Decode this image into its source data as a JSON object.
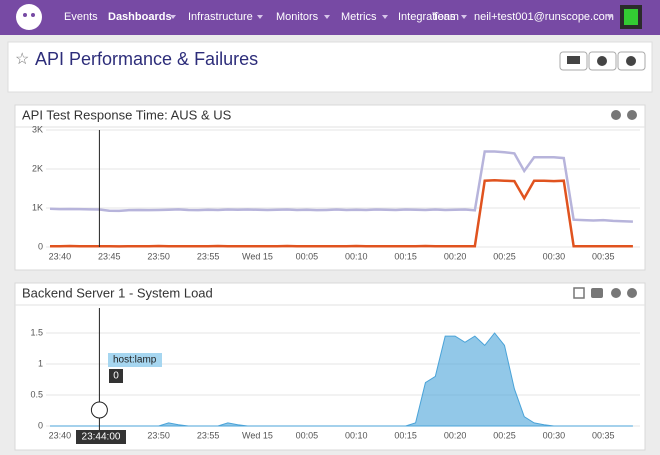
{
  "nav": {
    "items": [
      "Events",
      "Dashboards",
      "Infrastructure",
      "Monitors",
      "Metrics",
      "Integrations",
      "Team"
    ],
    "user": "neil+test001@runscope.com"
  },
  "dashboard": {
    "title": "API Performance & Failures"
  },
  "widgets": [
    {
      "type": "line",
      "title": "API Test Response Time: AUS & US",
      "categories": [
        null,
        "23:40",
        null,
        null,
        null,
        null,
        "23:45",
        null,
        null,
        null,
        null,
        "23:50",
        null,
        null,
        null,
        null,
        "23:55",
        null,
        null,
        null,
        null,
        "Wed 15",
        null,
        null,
        null,
        null,
        "00:05",
        null,
        null,
        null,
        null,
        "00:10",
        null,
        null,
        null,
        null,
        "00:15",
        null,
        null,
        null,
        null,
        "00:20",
        null,
        null,
        null,
        null,
        "00:25",
        null,
        null,
        null,
        null,
        "00:30",
        null,
        null,
        null,
        null,
        "00:35",
        null,
        null,
        null
      ],
      "ylim": [
        0,
        3000
      ],
      "yticks": [
        0,
        {
          "value": 1000,
          "label": "1K"
        },
        {
          "value": 2000,
          "label": "2K"
        },
        {
          "value": 3000,
          "label": "3K"
        }
      ],
      "series": [
        {
          "color": "#b7b4db",
          "values": [
            980,
            970,
            975,
            970,
            965,
            960,
            930,
            925,
            945,
            950,
            945,
            950,
            955,
            965,
            950,
            945,
            955,
            950,
            960,
            955,
            960,
            955,
            950,
            955,
            960,
            950,
            955,
            945,
            950,
            960,
            950,
            955,
            950,
            960,
            955,
            950,
            960,
            955,
            950,
            960,
            950,
            955,
            960,
            940,
            2450,
            2450,
            2430,
            2400,
            1950,
            2300,
            2300,
            2300,
            2280,
            700,
            690,
            680,
            690,
            670,
            660,
            650
          ]
        },
        {
          "color": "#e0531f",
          "values": [
            20,
            20,
            25,
            20,
            20,
            20,
            20,
            15,
            20,
            20,
            20,
            25,
            20,
            20,
            20,
            20,
            20,
            25,
            20,
            20,
            20,
            20,
            20,
            20,
            25,
            20,
            20,
            20,
            20,
            20,
            20,
            25,
            20,
            20,
            20,
            20,
            20,
            20,
            25,
            20,
            20,
            20,
            20,
            20,
            1700,
            1710,
            1700,
            1690,
            1250,
            1700,
            1700,
            1690,
            1700,
            20,
            20,
            20,
            20,
            20,
            20,
            20
          ]
        }
      ]
    },
    {
      "type": "area",
      "title": "Backend Server 1 - System Load",
      "categories": [
        null,
        "23:40",
        null,
        null,
        null,
        null,
        "23:45",
        null,
        null,
        null,
        null,
        "23:50",
        null,
        null,
        null,
        null,
        "23:55",
        null,
        null,
        null,
        null,
        "Wed 15",
        null,
        null,
        null,
        null,
        "00:05",
        null,
        null,
        null,
        null,
        "00:10",
        null,
        null,
        null,
        null,
        "00:15",
        null,
        null,
        null,
        null,
        "00:20",
        null,
        null,
        null,
        null,
        "00:25",
        null,
        null,
        null,
        null,
        "00:30",
        null,
        null,
        null,
        null,
        "00:35",
        null,
        null,
        null
      ],
      "ylim": [
        0,
        1.5
      ],
      "yticks": [
        0,
        0.5,
        1,
        1.5
      ],
      "series": [
        {
          "color": "#4aa3d8",
          "values": [
            0,
            0,
            0,
            0,
            0,
            0,
            0,
            0,
            0,
            0,
            0,
            0,
            0.05,
            0.02,
            0,
            0,
            0,
            0,
            0.05,
            0.02,
            0,
            0,
            0,
            0,
            0,
            0,
            0,
            0,
            0,
            0,
            0,
            0,
            0,
            0,
            0,
            0,
            0,
            0.05,
            0.7,
            0.8,
            1.45,
            1.45,
            1.35,
            1.45,
            1.3,
            1.5,
            1.3,
            0.6,
            0.15,
            0.05,
            0.02,
            0,
            0,
            0,
            0,
            0,
            0,
            0,
            0,
            0
          ]
        }
      ],
      "tooltip": {
        "label": "host:lamp",
        "value": 0,
        "time": "23:44:00"
      }
    }
  ]
}
